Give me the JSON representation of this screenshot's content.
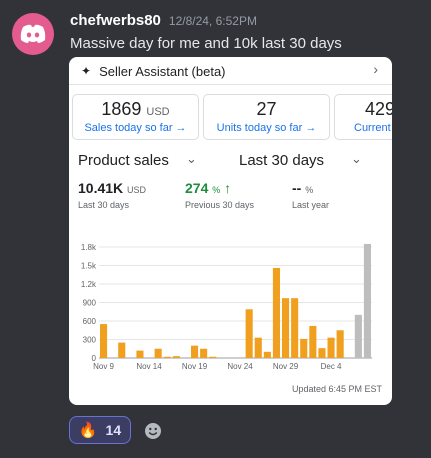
{
  "author": {
    "name": "chefwerbs80",
    "timestamp": "12/8/24, 6:52PM"
  },
  "message": {
    "text": "Massive day for me and  10k last 30 days"
  },
  "embed": {
    "title": "Seller Assistant (beta)",
    "cards": [
      {
        "value": "1869",
        "unit": "USD",
        "label": "Sales today so far →"
      },
      {
        "value": "27",
        "unit": "",
        "label": "Units today so far →"
      },
      {
        "value": "429",
        "unit": "",
        "label": "Current"
      }
    ],
    "dropdowns": {
      "metric": "Product sales",
      "period": "Last 30 days"
    },
    "metrics": [
      {
        "value": "10.41K",
        "unit": "USD",
        "label": "Last 30 days"
      },
      {
        "value": "274",
        "unit": "%",
        "arrow": "↑",
        "label": "Previous 30 days"
      },
      {
        "value": "--",
        "unit": "%",
        "label": "Last year"
      }
    ],
    "updated": "Updated 6:45 PM EST"
  },
  "chart_data": {
    "type": "bar",
    "x_tick_labels": [
      "Nov 9",
      "Nov 14",
      "Nov 19",
      "Nov 24",
      "Nov 29",
      "Dec 4"
    ],
    "y_tick_labels": [
      "0",
      "300",
      "600",
      "900",
      "1.2k",
      "1.5k",
      "1.8k"
    ],
    "ylim": [
      0,
      1800
    ],
    "categories": [
      "Nov 9",
      "Nov 10",
      "Nov 11",
      "Nov 12",
      "Nov 13",
      "Nov 14",
      "Nov 15",
      "Nov 16",
      "Nov 17",
      "Nov 18",
      "Nov 19",
      "Nov 20",
      "Nov 21",
      "Nov 22",
      "Nov 23",
      "Nov 24",
      "Nov 25",
      "Nov 26",
      "Nov 27",
      "Nov 28",
      "Nov 29",
      "Nov 30",
      "Dec 1",
      "Dec 2",
      "Dec 3",
      "Dec 4",
      "Dec 5",
      "Dec 6",
      "Dec 7",
      "Dec 8"
    ],
    "values": [
      550,
      0,
      250,
      0,
      120,
      0,
      150,
      20,
      30,
      0,
      200,
      150,
      20,
      0,
      0,
      0,
      790,
      330,
      100,
      1460,
      970,
      970,
      310,
      520,
      160,
      330,
      450,
      0,
      700,
      1850
    ],
    "bar_colors": {
      "actual": "#f0a01e",
      "projected": "#bdbdbd"
    },
    "projected_indices": [
      28,
      29
    ],
    "grid": true
  },
  "reaction": {
    "emoji": "🔥",
    "count": "14"
  },
  "colors": {
    "accent": "#1a73e8",
    "green": "#1e8e3e",
    "bar": "#f0a01e",
    "avatar": "#e45c8f"
  }
}
